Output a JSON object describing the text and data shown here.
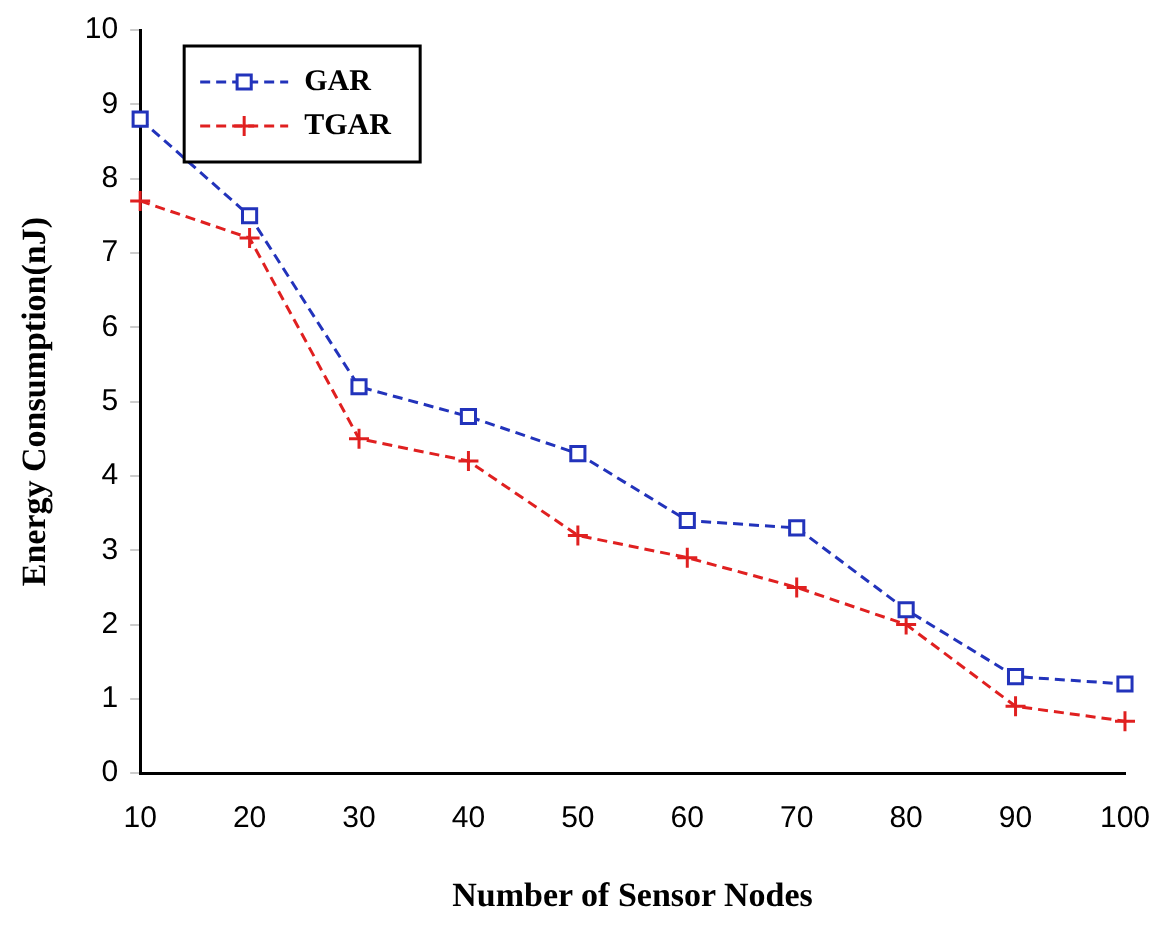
{
  "chart_data": {
    "type": "line",
    "xlabel": "Number of Sensor Nodes",
    "ylabel": "Energy Consumption(nJ)",
    "x": [
      10,
      20,
      30,
      40,
      50,
      60,
      70,
      80,
      90,
      100
    ],
    "series": [
      {
        "name": "GAR",
        "color": "#2233bb",
        "marker": "square",
        "values": [
          8.8,
          7.5,
          5.2,
          4.8,
          4.3,
          3.4,
          3.3,
          2.2,
          1.3,
          1.2
        ]
      },
      {
        "name": "TGAR",
        "color": "#e02020",
        "marker": "cross",
        "values": [
          7.7,
          7.2,
          4.5,
          4.2,
          3.2,
          2.9,
          2.5,
          2.0,
          0.9,
          0.7
        ]
      }
    ],
    "xlim": [
      10,
      100
    ],
    "xticks": [
      10,
      20,
      30,
      40,
      50,
      60,
      70,
      80,
      90,
      100
    ],
    "ylim": [
      0,
      10
    ],
    "yticks": [
      0,
      1,
      2,
      3,
      4,
      5,
      6,
      7,
      8,
      9,
      10
    ],
    "grid": false,
    "legend": "top left",
    "line_style": "dashed"
  }
}
